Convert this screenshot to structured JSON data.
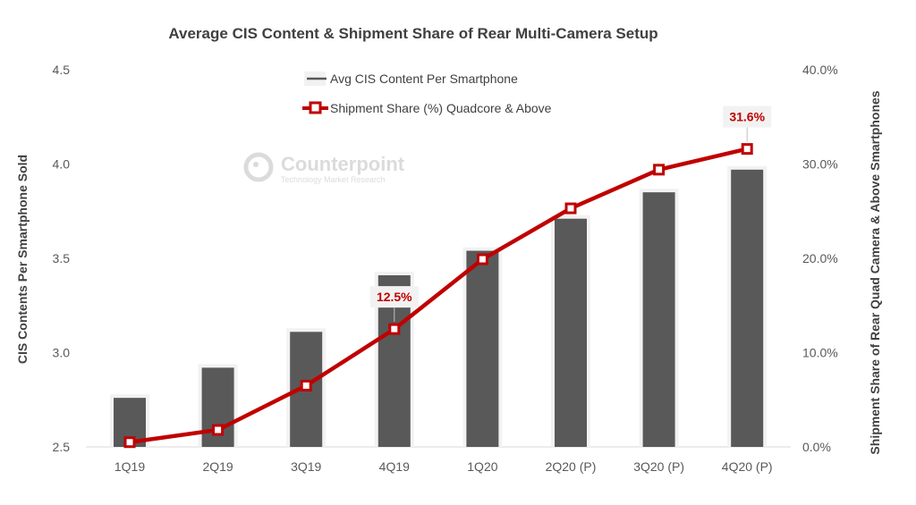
{
  "chart_data": {
    "type": "bar+line",
    "title": "Average CIS Content & Shipment Share of Rear Multi-Camera Setup",
    "categories": [
      "1Q19",
      "2Q19",
      "3Q19",
      "4Q19",
      "1Q20",
      "2Q20 (P)",
      "3Q20 (P)",
      "4Q20 (P)"
    ],
    "series": [
      {
        "name": "Avg CIS Content Per Smartphone",
        "type": "bar",
        "axis": "left",
        "color": "#595959",
        "values": [
          2.76,
          2.92,
          3.11,
          3.41,
          3.54,
          3.71,
          3.85,
          3.97
        ]
      },
      {
        "name": "Shipment Share (%) Quadcore & Above",
        "type": "line",
        "axis": "right",
        "color": "#c00000",
        "values": [
          0.5,
          1.8,
          6.5,
          12.5,
          19.9,
          25.3,
          29.4,
          31.6
        ]
      }
    ],
    "data_labels": [
      {
        "index": 3,
        "text": "12.5%"
      },
      {
        "index": 7,
        "text": "31.6%"
      }
    ],
    "ylabel": "CIS Contents Per Smartphone Sold",
    "y2label": "Shipment Share of Rear Quad Camera  & Above Smartphones",
    "ylim": [
      2.5,
      4.5
    ],
    "y2lim": [
      0,
      40
    ],
    "yticks": [
      "2.5",
      "3.0",
      "3.5",
      "4.0",
      "4.5"
    ],
    "y2ticks": [
      "0.0%",
      "10.0%",
      "20.0%",
      "30.0%",
      "40.0%"
    ],
    "legend_position": "top-center",
    "grid": false
  },
  "watermark": {
    "brand": "Counterpoint",
    "tagline": "Technology Market Research"
  }
}
